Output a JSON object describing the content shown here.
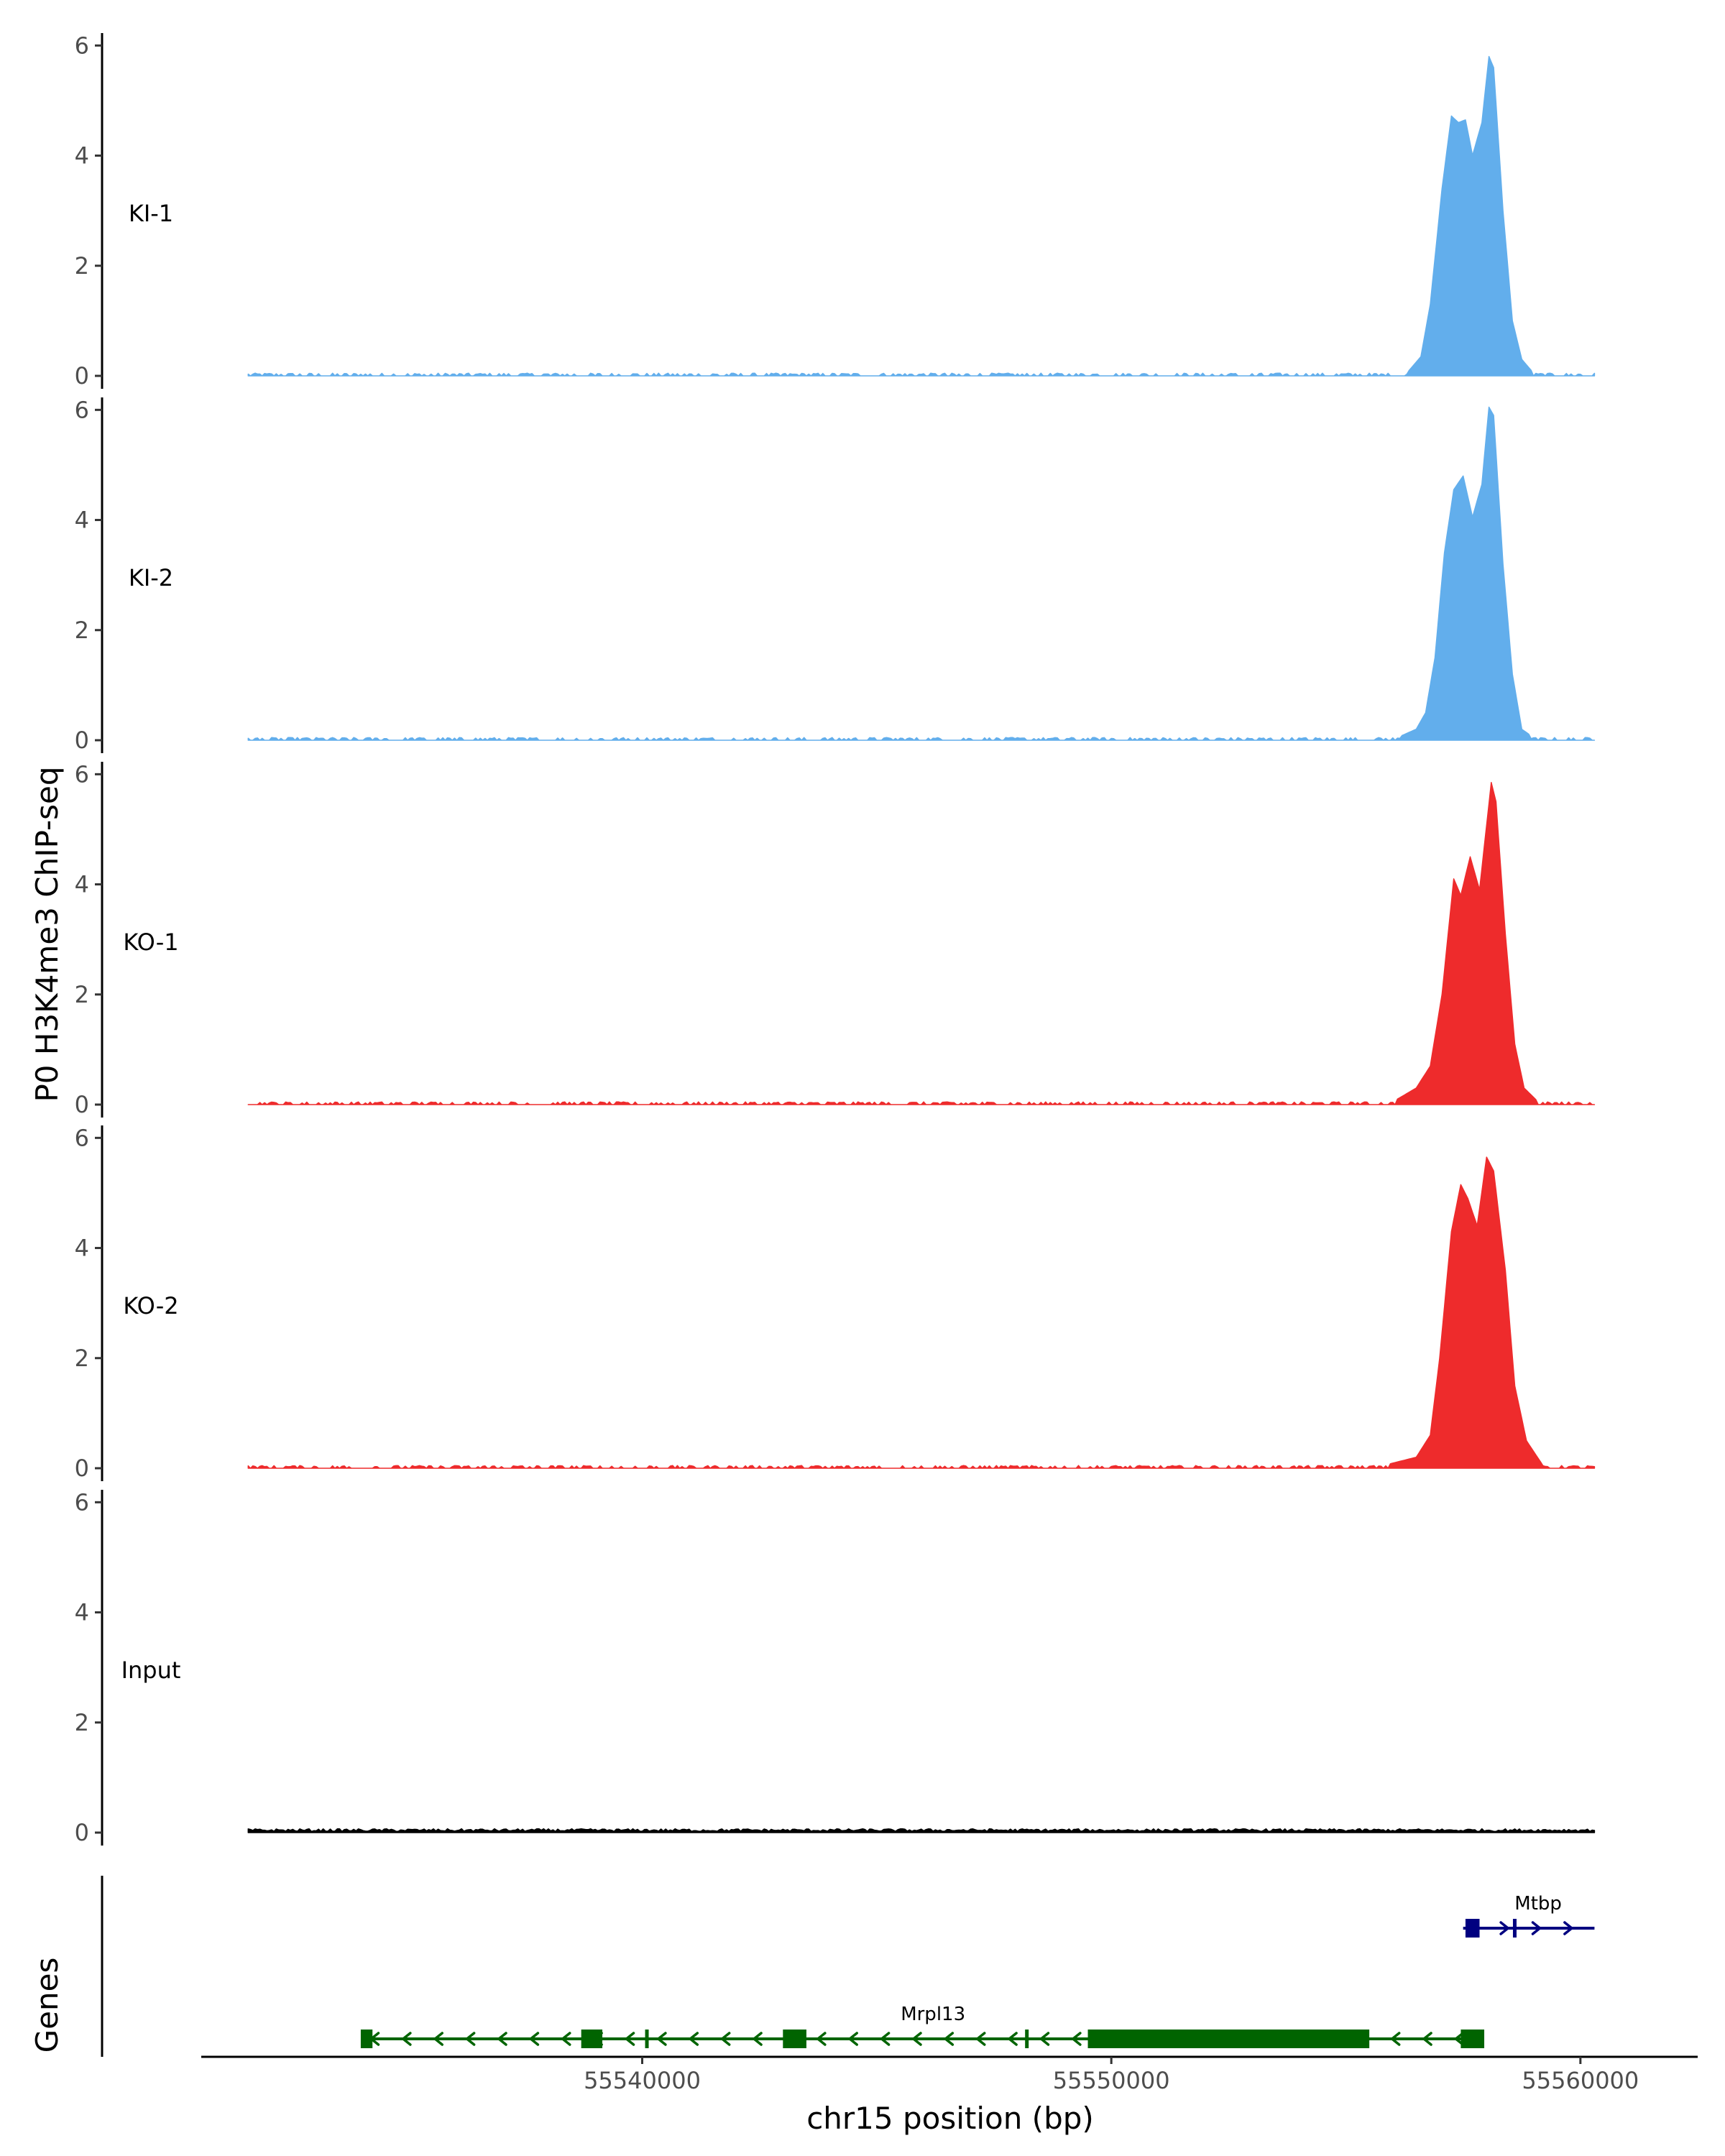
{
  "chart_data": {
    "type": "area",
    "ylabel": "P0 H3K4me3 ChIP-seq",
    "xlabel": "chr15 position (bp)",
    "genes_label": "Genes",
    "xlim": [
      55530600,
      55562500
    ],
    "ylim": [
      0,
      6.2
    ],
    "x_ticks": [
      55540000,
      55550000,
      55560000
    ],
    "x_tick_labels": [
      "55540000",
      "55550000",
      "55560000"
    ],
    "y_ticks": [
      0,
      2,
      4,
      6
    ],
    "y_tick_labels": [
      "0",
      "2",
      "4",
      "6"
    ],
    "signal_x_range": [
      55531600,
      55560300
    ],
    "tracks": [
      {
        "label": "KI-1",
        "color": "#62AEEC",
        "peaks": [
          [
            55556300,
            0.05
          ],
          [
            55556600,
            0.35
          ],
          [
            55556800,
            1.3
          ],
          [
            55557050,
            3.4
          ],
          [
            55557250,
            4.72
          ],
          [
            55557400,
            4.6
          ],
          [
            55557550,
            4.65
          ],
          [
            55557700,
            4.0
          ],
          [
            55557900,
            4.6
          ],
          [
            55558050,
            5.8
          ],
          [
            55558150,
            5.6
          ],
          [
            55558350,
            3.0
          ],
          [
            55558550,
            1.0
          ],
          [
            55558750,
            0.3
          ],
          [
            55559000,
            0.05
          ]
        ]
      },
      {
        "label": "KI-2",
        "color": "#62AEEC",
        "peaks": [
          [
            55556100,
            0.05
          ],
          [
            55556500,
            0.2
          ],
          [
            55556700,
            0.5
          ],
          [
            55556900,
            1.5
          ],
          [
            55557100,
            3.4
          ],
          [
            55557300,
            4.55
          ],
          [
            55557500,
            4.8
          ],
          [
            55557700,
            4.05
          ],
          [
            55557900,
            4.65
          ],
          [
            55558050,
            6.05
          ],
          [
            55558150,
            5.9
          ],
          [
            55558350,
            3.2
          ],
          [
            55558550,
            1.2
          ],
          [
            55558750,
            0.2
          ],
          [
            55559000,
            0.05
          ]
        ]
      },
      {
        "label": "KO-1",
        "color": "#EE2B2C",
        "peaks": [
          [
            55556000,
            0.05
          ],
          [
            55556500,
            0.3
          ],
          [
            55556800,
            0.7
          ],
          [
            55557050,
            2.0
          ],
          [
            55557300,
            4.1
          ],
          [
            55557450,
            3.8
          ],
          [
            55557650,
            4.5
          ],
          [
            55557850,
            3.9
          ],
          [
            55558100,
            5.85
          ],
          [
            55558200,
            5.5
          ],
          [
            55558400,
            3.1
          ],
          [
            55558600,
            1.1
          ],
          [
            55558800,
            0.3
          ],
          [
            55559100,
            0.05
          ]
        ]
      },
      {
        "label": "KO-2",
        "color": "#EE2B2C",
        "peaks": [
          [
            55555800,
            0.05
          ],
          [
            55556500,
            0.2
          ],
          [
            55556800,
            0.6
          ],
          [
            55557000,
            2.0
          ],
          [
            55557250,
            4.3
          ],
          [
            55557450,
            5.15
          ],
          [
            55557600,
            4.9
          ],
          [
            55557800,
            4.4
          ],
          [
            55558000,
            5.65
          ],
          [
            55558150,
            5.4
          ],
          [
            55558400,
            3.6
          ],
          [
            55558600,
            1.5
          ],
          [
            55558850,
            0.5
          ],
          [
            55559200,
            0.05
          ]
        ]
      },
      {
        "label": "Input",
        "color": "#000000",
        "peaks": []
      }
    ],
    "genes": [
      {
        "name": "Mrpl13",
        "color": "#006400",
        "strand": "-",
        "start": 55534100,
        "end": 55557800,
        "exons": [
          [
            55534000,
            55534250
          ],
          [
            55538700,
            55539150
          ],
          [
            55543000,
            55543500
          ],
          [
            55549500,
            55555500
          ],
          [
            55557450,
            55557950
          ]
        ],
        "ticks": [
          55540100,
          55548200
        ]
      },
      {
        "name": "Mtbp",
        "color": "#000080",
        "strand": "+",
        "start": 55557500,
        "end": 55560300,
        "exons": [
          [
            55557550,
            55557850
          ]
        ],
        "ticks": [
          55558600
        ]
      }
    ]
  }
}
